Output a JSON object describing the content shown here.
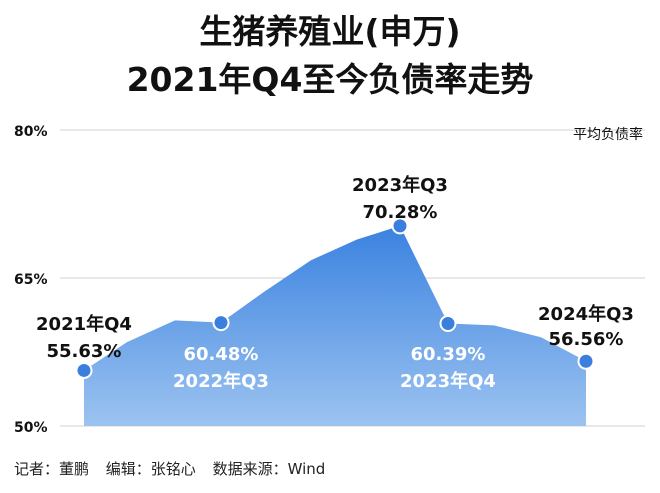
{
  "title": {
    "line1": "生猪养殖业(申万)",
    "line2": "2021年Q4至今负债率走势"
  },
  "chart_data": {
    "type": "area",
    "ylim": [
      50,
      80
    ],
    "ytick_labels": [
      "80%",
      "65%",
      "50%"
    ],
    "ytick_values": [
      80,
      65,
      50
    ],
    "series_name": "平均负债率",
    "grid": true,
    "points": [
      {
        "period": "2021年Q4",
        "value": 55.63,
        "label_value": "55.63%",
        "marker": true
      },
      {
        "period": "",
        "value": 58.5,
        "label_value": "",
        "marker": false
      },
      {
        "period": "",
        "value": 60.7,
        "label_value": "",
        "marker": false
      },
      {
        "period": "2022年Q3",
        "value": 60.48,
        "label_value": "60.48%",
        "marker": true
      },
      {
        "period": "",
        "value": 63.6,
        "label_value": "",
        "marker": false
      },
      {
        "period": "",
        "value": 66.8,
        "label_value": "",
        "marker": false
      },
      {
        "period": "",
        "value": 68.9,
        "label_value": "",
        "marker": false
      },
      {
        "period": "2023年Q3",
        "value": 70.28,
        "label_value": "70.28%",
        "marker": true
      },
      {
        "period": "2023年Q4",
        "value": 60.39,
        "label_value": "60.39%",
        "marker": true
      },
      {
        "period": "",
        "value": 60.2,
        "label_value": "",
        "marker": false
      },
      {
        "period": "",
        "value": 59.0,
        "label_value": "",
        "marker": false
      },
      {
        "period": "2024年Q3",
        "value": 56.56,
        "label_value": "56.56%",
        "marker": true
      }
    ],
    "colors": {
      "area_top": "#3a82e0",
      "area_bottom": "#9cc3f0",
      "marker": "#3b7fde",
      "marker_stroke": "#ffffff",
      "grid": "#d0d0d0",
      "label_dark": "#111111",
      "label_light": "#ffffff"
    }
  },
  "footer": {
    "reporter": "记者：董鹏",
    "editor": "编辑：张铭心",
    "source": "数据来源：Wind"
  }
}
